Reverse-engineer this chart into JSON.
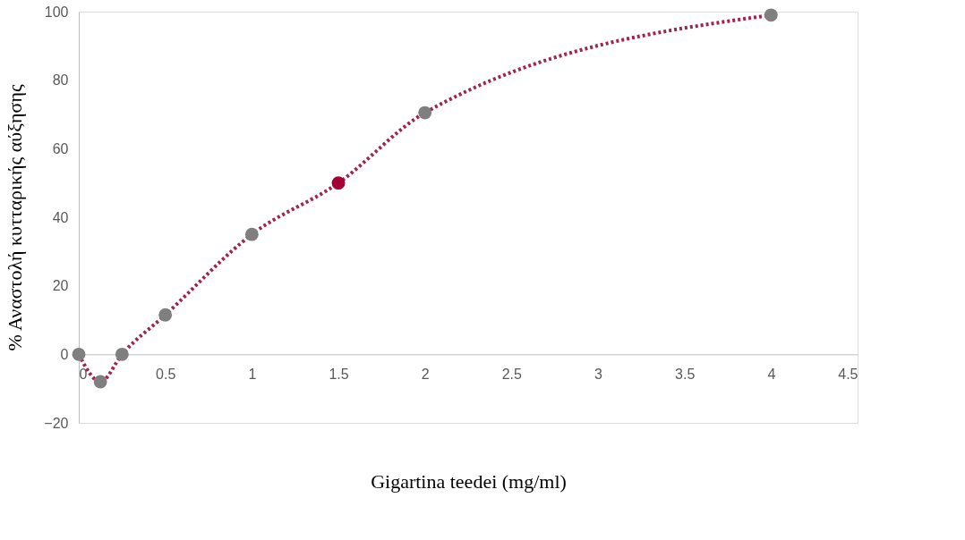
{
  "chart_data": {
    "type": "line",
    "xlabel": "Gigartina teedei (mg/ml)",
    "ylabel": "% Αναστολή κυτταρικής αύξησης",
    "x": [
      0,
      0.125,
      0.25,
      0.5,
      1,
      1.5,
      2,
      4
    ],
    "series": [
      {
        "color": "#a3234f",
        "values": [
          0,
          -8,
          0,
          11.5,
          35,
          50,
          70.5,
          99
        ],
        "colors": [
          "#7f7f7f",
          "#7f7f7f",
          "#7f7f7f",
          "#7f7f7f",
          "#7f7f7f",
          "#a50034",
          "#7f7f7f",
          "#7f7f7f"
        ]
      }
    ],
    "xlim": [
      0,
      4.5
    ],
    "xticks": [
      0,
      0.5,
      1,
      1.5,
      2,
      2.5,
      3,
      3.5,
      4,
      4.5
    ],
    "ylim": [
      -20,
      100
    ],
    "yticks": [
      -20,
      0,
      20,
      40,
      60,
      80,
      100
    ],
    "grid": false,
    "marker": "circle",
    "line_style": "dotted"
  }
}
